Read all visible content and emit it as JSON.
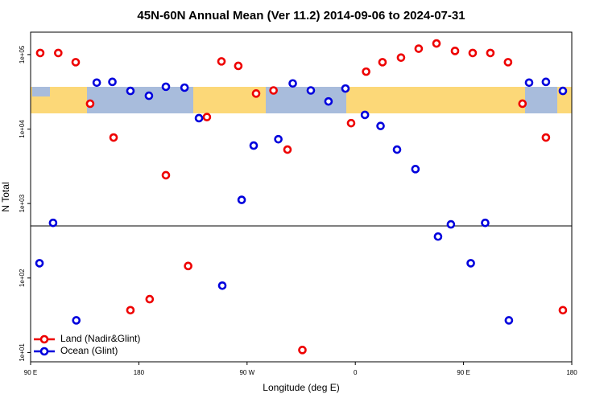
{
  "chart_data": {
    "type": "scatter",
    "title": "45N-60N Annual Mean (Ver 11.2)   2014-09-06 to 2024-07-31",
    "x_label": "Longitude (deg E)",
    "y_label": "N Total",
    "log_y": true,
    "legend": "lower left",
    "xlim": [
      90,
      540
    ],
    "ylim": [
      7.5,
      200000
    ],
    "xticks": [
      {
        "value": 90,
        "label": "90 E"
      },
      180,
      {
        "value": 270,
        "label": "90 W"
      },
      {
        "value": 360,
        "label": "0"
      },
      {
        "value": 450,
        "label": "90 E"
      },
      {
        "value": 540,
        "label": "180"
      }
    ],
    "yticks": [
      {
        "value": 10,
        "label": "1e+01"
      },
      {
        "value": 100,
        "label": "1e+02"
      },
      {
        "value": 1000,
        "label": "1e+03"
      },
      {
        "value": 10000,
        "label": "1e+04"
      },
      {
        "value": 100000,
        "label": "1e+05"
      }
    ],
    "series": [
      {
        "name": "Land (Nadir&Glint)",
        "color": "#ee0000",
        "x": [
          98,
          113,
          127.5,
          139.5,
          159,
          173,
          189,
          202.5,
          221,
          236.6,
          248.7,
          262.7,
          277.5,
          292,
          303.6,
          316,
          356.5,
          369,
          382.6,
          398,
          412.7,
          427.5,
          442.9,
          457.6,
          472.3,
          487,
          499,
          518.5,
          532.6
        ],
        "values": [
          105000,
          105000,
          79000,
          21900,
          7700,
          37,
          52,
          2400,
          145,
          14500,
          81000,
          70500,
          30000,
          33000,
          5300,
          10.8,
          12000,
          59000,
          79000,
          91000,
          120000,
          141000,
          112000,
          105000,
          105000,
          79000,
          21900,
          7700,
          37
        ]
      },
      {
        "name": "Ocean (Glint)",
        "color": "#0000dd",
        "x": [
          97.4,
          108.7,
          128,
          145,
          158,
          173,
          188.4,
          202.5,
          218,
          230,
          249.4,
          265.5,
          275.5,
          296,
          308,
          323,
          337.7,
          351.8,
          368,
          381,
          394.7,
          410,
          428.8,
          439.5,
          456,
          468,
          487.7,
          504.5,
          518.5,
          532.6
        ],
        "values": [
          158,
          550,
          27,
          42000,
          43000,
          32500,
          28000,
          37000,
          36000,
          14000,
          79,
          1120,
          6000,
          7300,
          41000,
          33000,
          23500,
          35000,
          15500,
          11000,
          5300,
          2900,
          360,
          525,
          158,
          550,
          27,
          42000,
          43000,
          32500
        ]
      }
    ]
  }
}
